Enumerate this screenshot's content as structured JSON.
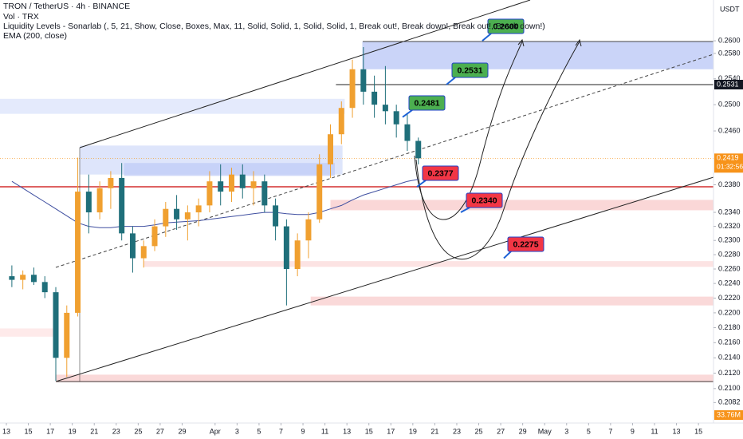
{
  "header": {
    "title": "TRON / TetherUS · 4h · BINANCE",
    "volume": "Vol · TRX",
    "indicator": "Liquidity Levels - Sonarlab (, 5, 21, Show, Close, Boxes, Max, 11, Solid, Solid, 1, Solid, Solid, 1, Break out!, Break down!, Break out!, Break down!)",
    "ema": "EMA (200, close)"
  },
  "chart_data": {
    "type": "candlestick",
    "currency": "USDT",
    "log": true,
    "ylim": [
      0.2056,
      0.2666
    ],
    "yticks": [
      {
        "value": 0.26,
        "label": "0.2600"
      },
      {
        "value": 0.258,
        "label": "0.2580"
      },
      {
        "value": 0.254,
        "label": "0.2540"
      },
      {
        "value": 0.25,
        "label": "0.2500"
      },
      {
        "value": 0.246,
        "label": "0.2460"
      },
      {
        "value": 0.238,
        "label": "0.2380"
      },
      {
        "value": 0.234,
        "label": "0.2340"
      },
      {
        "value": 0.232,
        "label": "0.2320"
      },
      {
        "value": 0.23,
        "label": "0.2300"
      },
      {
        "value": 0.228,
        "label": "0.2280"
      },
      {
        "value": 0.226,
        "label": "0.2260"
      },
      {
        "value": 0.224,
        "label": "0.2240"
      },
      {
        "value": 0.222,
        "label": "0.2220"
      },
      {
        "value": 0.22,
        "label": "0.2200"
      },
      {
        "value": 0.218,
        "label": "0.2180"
      },
      {
        "value": 0.216,
        "label": "0.2160"
      },
      {
        "value": 0.214,
        "label": "0.2140"
      },
      {
        "value": 0.212,
        "label": "0.2120"
      },
      {
        "value": 0.21,
        "label": "0.2100"
      },
      {
        "value": 0.2082,
        "label": "0.2082"
      }
    ],
    "xlim": [
      -0.58,
      64.37
    ],
    "xticks": [
      {
        "value": 0,
        "label": "13"
      },
      {
        "value": 2,
        "label": "15"
      },
      {
        "value": 4,
        "label": "17"
      },
      {
        "value": 6,
        "label": "19"
      },
      {
        "value": 8,
        "label": "21"
      },
      {
        "value": 10,
        "label": "23"
      },
      {
        "value": 12,
        "label": "25"
      },
      {
        "value": 14,
        "label": "27"
      },
      {
        "value": 16,
        "label": "29"
      },
      {
        "value": 19,
        "label": "Apr"
      },
      {
        "value": 21,
        "label": "3"
      },
      {
        "value": 23,
        "label": "5"
      },
      {
        "value": 25,
        "label": "7"
      },
      {
        "value": 27,
        "label": "9"
      },
      {
        "value": 29,
        "label": "11"
      },
      {
        "value": 31,
        "label": "13"
      },
      {
        "value": 33,
        "label": "15"
      },
      {
        "value": 35,
        "label": "17"
      },
      {
        "value": 37,
        "label": "19"
      },
      {
        "value": 39,
        "label": "21"
      },
      {
        "value": 41,
        "label": "23"
      },
      {
        "value": 43,
        "label": "25"
      },
      {
        "value": 45,
        "label": "27"
      },
      {
        "value": 47,
        "label": "29"
      },
      {
        "value": 49,
        "label": "May"
      },
      {
        "value": 51,
        "label": "3"
      },
      {
        "value": 53,
        "label": "5"
      },
      {
        "value": 55,
        "label": "7"
      },
      {
        "value": 57,
        "label": "9"
      },
      {
        "value": 59,
        "label": "11"
      },
      {
        "value": 61,
        "label": "13"
      },
      {
        "value": 63,
        "label": "15"
      }
    ],
    "up_color": "#f0a030",
    "down_color": "#1f6f7a",
    "x": [
      0,
      1,
      2,
      3,
      4,
      5,
      6,
      7,
      8,
      9,
      10,
      11,
      12,
      13,
      14,
      15,
      16,
      17,
      18,
      19,
      20,
      21,
      22,
      23,
      24,
      25,
      26,
      27,
      28,
      29,
      30,
      31,
      32,
      33,
      34,
      35,
      36,
      37
    ],
    "open": [
      0.225,
      0.2245,
      0.2252,
      0.2242,
      0.2228,
      0.214,
      0.22,
      0.237,
      0.234,
      0.2375,
      0.239,
      0.231,
      0.2275,
      0.2292,
      0.232,
      0.2345,
      0.233,
      0.234,
      0.235,
      0.2385,
      0.237,
      0.2395,
      0.2375,
      0.2385,
      0.235,
      0.232,
      0.226,
      0.23,
      0.233,
      0.241,
      0.2455,
      0.2495,
      0.2555,
      0.252,
      0.25,
      0.249,
      0.247,
      0.2445
    ],
    "high": [
      0.2265,
      0.2258,
      0.2262,
      0.225,
      0.2235,
      0.221,
      0.242,
      0.2395,
      0.2385,
      0.24,
      0.2412,
      0.232,
      0.23,
      0.233,
      0.2355,
      0.2365,
      0.235,
      0.236,
      0.24,
      0.241,
      0.2405,
      0.241,
      0.24,
      0.2395,
      0.236,
      0.233,
      0.231,
      0.234,
      0.2425,
      0.247,
      0.2505,
      0.257,
      0.259,
      0.2545,
      0.256,
      0.25,
      0.2485,
      0.245
    ],
    "low": [
      0.2235,
      0.2232,
      0.2238,
      0.222,
      0.211,
      0.2115,
      0.2195,
      0.231,
      0.233,
      0.2345,
      0.23,
      0.2255,
      0.2262,
      0.2285,
      0.2305,
      0.2315,
      0.23,
      0.232,
      0.234,
      0.235,
      0.2355,
      0.236,
      0.235,
      0.234,
      0.23,
      0.221,
      0.225,
      0.2275,
      0.2325,
      0.239,
      0.244,
      0.248,
      0.25,
      0.248,
      0.247,
      0.245,
      0.243,
      0.241
    ],
    "close": [
      0.2245,
      0.2252,
      0.2242,
      0.2228,
      0.214,
      0.22,
      0.237,
      0.234,
      0.2375,
      0.239,
      0.231,
      0.2275,
      0.2292,
      0.232,
      0.2345,
      0.233,
      0.234,
      0.235,
      0.2385,
      0.237,
      0.2395,
      0.2375,
      0.2385,
      0.235,
      0.232,
      0.226,
      0.23,
      0.233,
      0.241,
      0.2455,
      0.2495,
      0.2555,
      0.252,
      0.25,
      0.249,
      0.247,
      0.2445,
      0.2419
    ],
    "ema": {
      "color": "#3f4fa0",
      "values": [
        0.2385,
        0.2375,
        0.2365,
        0.2355,
        0.2345,
        0.2335,
        0.2325,
        0.232,
        0.2318,
        0.2318,
        0.232,
        0.232,
        0.232,
        0.2322,
        0.2325,
        0.2326,
        0.2327,
        0.2328,
        0.233,
        0.2332,
        0.2334,
        0.2336,
        0.2338,
        0.234,
        0.234,
        0.2338,
        0.2337,
        0.2337,
        0.234,
        0.2345,
        0.235,
        0.2358,
        0.2365,
        0.237,
        0.2375,
        0.238,
        0.2385,
        0.2388
      ]
    },
    "zones": [
      {
        "x": [
          32.4,
          64.37
        ],
        "range": [
          0.2555,
          0.2599
        ],
        "color": "#b8c6f6"
      },
      {
        "x": [
          -0.58,
          30.8
        ],
        "range": [
          0.2486,
          0.2509
        ],
        "color": "#dbe3fb"
      },
      {
        "x": [
          6.7,
          30.6
        ],
        "range": [
          0.2395,
          0.2438
        ],
        "color": "#d3dcfa"
      },
      {
        "x": [
          10.7,
          29.9
        ],
        "range": [
          0.2393,
          0.2412
        ],
        "color": "#bfcbf7"
      },
      {
        "x": [
          29.5,
          64.37
        ],
        "range": [
          0.2343,
          0.2358
        ],
        "color": "#f8c9c9"
      },
      {
        "x": [
          12.5,
          64.37
        ],
        "range": [
          0.2263,
          0.2271
        ],
        "color": "#fbd9d9"
      },
      {
        "x": [
          27.7,
          64.37
        ],
        "range": [
          0.221,
          0.2222
        ],
        "color": "#f8cccc"
      },
      {
        "x": [
          -0.58,
          4.5
        ],
        "range": [
          0.2168,
          0.2179
        ],
        "color": "#fde3e3"
      },
      {
        "x": [
          4.5,
          64.37
        ],
        "range": [
          0.2108,
          0.2118
        ],
        "color": "#f8cccc"
      }
    ],
    "annotations": [
      {
        "value": 0.26,
        "label": "0.2600",
        "color": "#4caf50"
      },
      {
        "value": 0.2531,
        "label": "0.2531",
        "color": "#4caf50"
      },
      {
        "value": 0.2481,
        "label": "0.2481",
        "color": "#4caf50"
      },
      {
        "value": 0.2377,
        "label": "0.2377",
        "color": "#f23645"
      },
      {
        "value": 0.234,
        "label": "0.2340",
        "color": "#f23645"
      },
      {
        "value": 0.2275,
        "label": "0.2275",
        "color": "#f23645"
      }
    ],
    "last_price": {
      "value": 0.2419,
      "label": "0.2419"
    },
    "countdown": "01:32:56",
    "level_tag": {
      "value": 0.2531,
      "label": "0.2531"
    },
    "volume_tag": "33.76M"
  }
}
